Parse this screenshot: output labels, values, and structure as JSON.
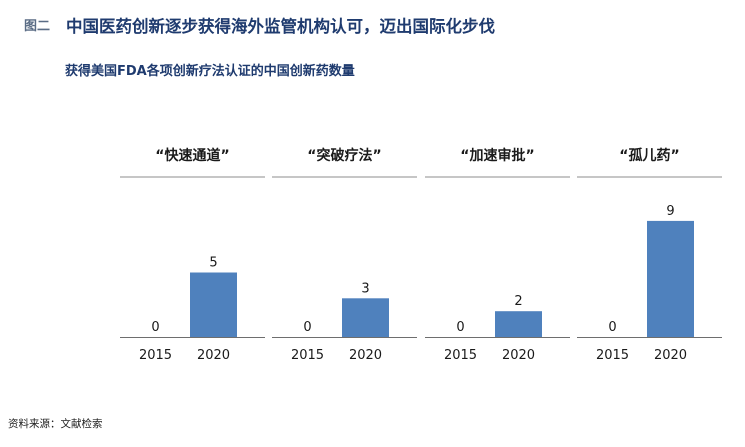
{
  "figure": {
    "number": "图二",
    "title": "中国医药创新逐步获得海外监管机构认可，迈出国际化步伐",
    "source": "资料来源：文献检索"
  },
  "chart_data": {
    "type": "bar",
    "title": "获得美国FDA各项创新疗法认证的中国创新药数量",
    "categories": [
      "2015",
      "2020"
    ],
    "bar_color": "#4f81bd",
    "grid": false,
    "panels": [
      {
        "name": "“快速通道”",
        "values": [
          0,
          5
        ]
      },
      {
        "name": "“突破疗法”",
        "values": [
          0,
          3
        ]
      },
      {
        "name": "“加速审批”",
        "values": [
          0,
          2
        ]
      },
      {
        "name": "“孤儿药”",
        "values": [
          0,
          9
        ]
      }
    ],
    "ylim": [
      0,
      9
    ]
  }
}
